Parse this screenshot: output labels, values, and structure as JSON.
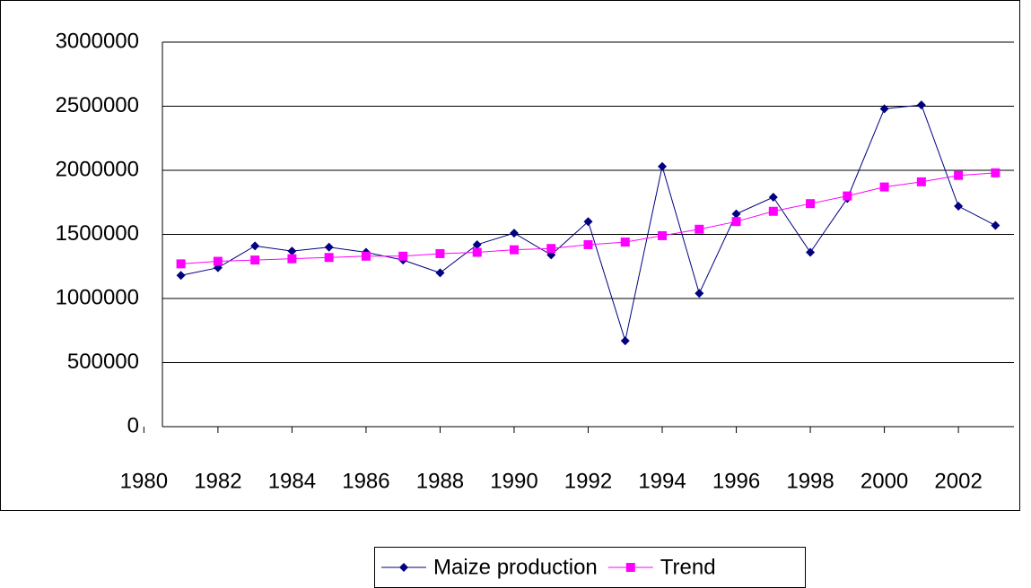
{
  "chart_data": {
    "type": "line",
    "x": [
      1981,
      1982,
      1983,
      1984,
      1985,
      1986,
      1987,
      1988,
      1989,
      1990,
      1991,
      1992,
      1993,
      1994,
      1995,
      1996,
      1997,
      1998,
      1999,
      2000,
      2001,
      2002,
      2003
    ],
    "series": [
      {
        "name": "Maize production",
        "color": "#000080",
        "marker": "diamond",
        "values": [
          1180000,
          1240000,
          1410000,
          1370000,
          1400000,
          1360000,
          1300000,
          1200000,
          1420000,
          1510000,
          1340000,
          1600000,
          670000,
          2030000,
          1040000,
          1660000,
          1790000,
          1360000,
          1780000,
          2480000,
          2510000,
          1720000,
          1570000
        ]
      },
      {
        "name": "Trend",
        "color": "#ff00ff",
        "marker": "square",
        "values": [
          1270000,
          1290000,
          1300000,
          1310000,
          1320000,
          1330000,
          1330000,
          1350000,
          1360000,
          1380000,
          1390000,
          1420000,
          1440000,
          1490000,
          1540000,
          1600000,
          1680000,
          1740000,
          1800000,
          1870000,
          1910000,
          1960000,
          1980000
        ]
      }
    ],
    "xlim": [
      1980.5,
      2003.5
    ],
    "xticks": [
      1980,
      1982,
      1984,
      1986,
      1988,
      1990,
      1992,
      1994,
      1996,
      1998,
      2000,
      2002
    ],
    "ylim": [
      0,
      3000000
    ],
    "yticks": [
      0,
      500000,
      1000000,
      1500000,
      2000000,
      2500000,
      3000000
    ],
    "grid": true,
    "legend": "bottom"
  }
}
